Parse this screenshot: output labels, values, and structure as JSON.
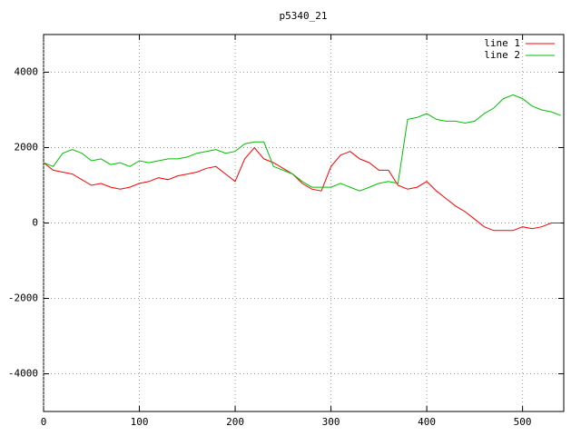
{
  "chart_data": {
    "type": "line",
    "title": "p5340_21",
    "x": [
      0,
      10,
      20,
      30,
      40,
      50,
      60,
      70,
      80,
      90,
      100,
      110,
      120,
      130,
      140,
      150,
      160,
      170,
      180,
      190,
      200,
      210,
      220,
      230,
      240,
      250,
      260,
      270,
      280,
      290,
      300,
      310,
      320,
      330,
      340,
      350,
      360,
      370,
      380,
      390,
      400,
      410,
      420,
      430,
      440,
      450,
      460,
      470,
      480,
      490,
      500,
      510,
      520,
      530,
      540
    ],
    "series": [
      {
        "name": "line 1",
        "color": "#ff0000",
        "values": [
          1600,
          1400,
          1350,
          1300,
          1150,
          1000,
          1050,
          950,
          900,
          950,
          1050,
          1100,
          1200,
          1150,
          1250,
          1300,
          1350,
          1450,
          1500,
          1300,
          1100,
          1700,
          2000,
          1700,
          1600,
          1450,
          1300,
          1050,
          900,
          850,
          1500,
          1800,
          1900,
          1700,
          1600,
          1400,
          1400,
          1000,
          900,
          950,
          1100,
          850,
          650,
          450,
          300,
          100,
          -100,
          -200,
          -200,
          -200,
          -100,
          -150,
          -100,
          0,
          0
        ]
      },
      {
        "name": "line 2",
        "color": "#00c000",
        "values": [
          1600,
          1500,
          1850,
          1950,
          1850,
          1650,
          1700,
          1550,
          1600,
          1500,
          1650,
          1600,
          1650,
          1700,
          1700,
          1750,
          1850,
          1900,
          1950,
          1850,
          1900,
          2100,
          2150,
          2150,
          1500,
          1400,
          1300,
          1100,
          950,
          950,
          950,
          1050,
          950,
          850,
          950,
          1050,
          1100,
          1050,
          2750,
          2800,
          2900,
          2750,
          2700,
          2700,
          2650,
          2700,
          2900,
          3050,
          3300,
          3400,
          3300,
          3100,
          3000,
          2950,
          2850
        ]
      }
    ],
    "xlim": [
      0,
      543
    ],
    "ylim": [
      -5000,
      5000
    ],
    "xticks": [
      0,
      100,
      200,
      300,
      400,
      500
    ],
    "yticks": [
      -4000,
      -2000,
      0,
      2000,
      4000
    ],
    "grid": true,
    "legend": "top-right"
  }
}
